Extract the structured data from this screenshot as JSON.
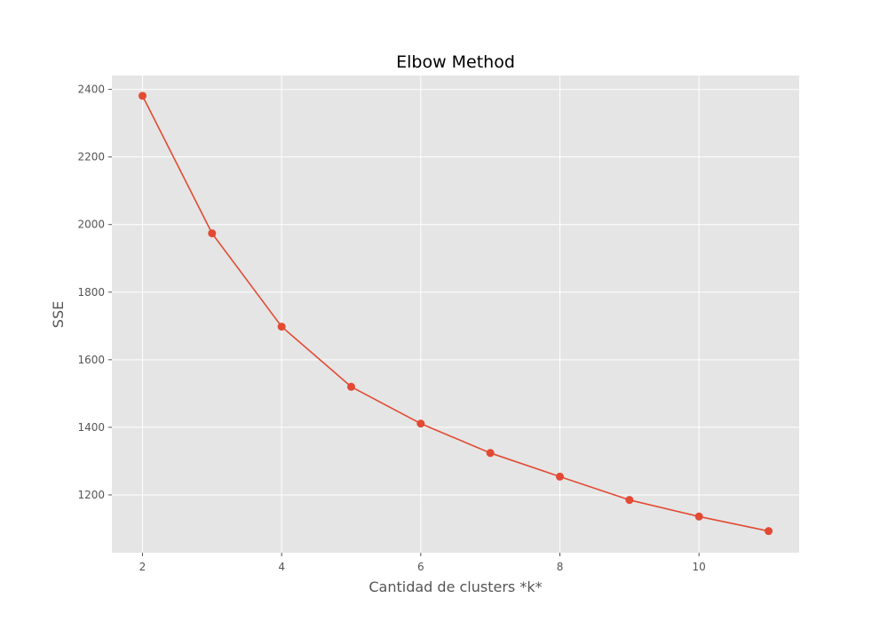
{
  "chart_data": {
    "type": "line",
    "title": "Elbow Method",
    "xlabel": "Cantidad de clusters *k*",
    "ylabel": "SSE",
    "x": [
      2,
      3,
      4,
      5,
      6,
      7,
      8,
      9,
      10,
      11
    ],
    "series": [
      {
        "values": [
          2381,
          1974,
          1698,
          1520,
          1411,
          1324,
          1254,
          1185,
          1136,
          1093
        ]
      }
    ],
    "xticks": [
      2,
      4,
      6,
      8,
      10
    ],
    "yticks": [
      1200,
      1400,
      1600,
      1800,
      2000,
      2200,
      2400
    ],
    "xlim": [
      1.56,
      11.44
    ],
    "ylim": [
      1029,
      2441
    ],
    "grid": true,
    "legend": "none",
    "colors": {
      "line": "#e24a33",
      "plot_background": "#e5e5e5",
      "grid": "#ffffff",
      "tick_text": "#555555",
      "title_text": "#000000"
    }
  }
}
